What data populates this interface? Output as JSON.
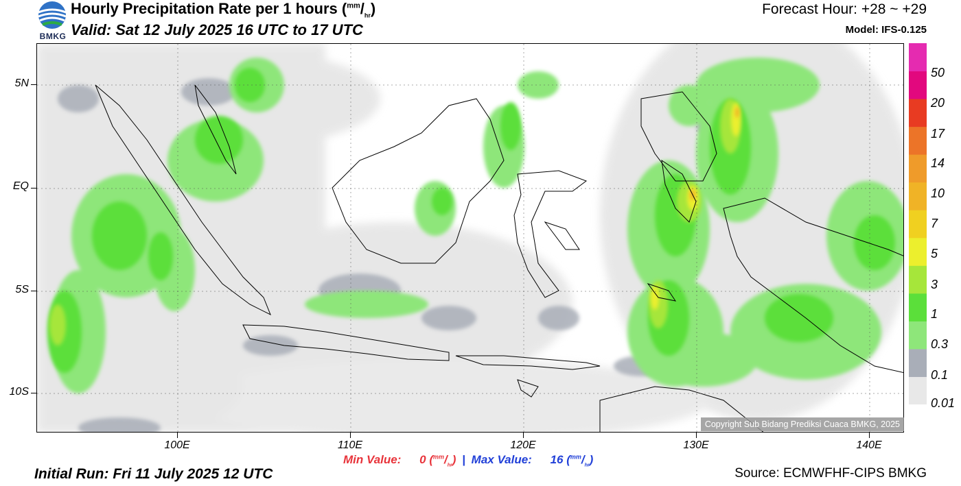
{
  "header": {
    "title_main": "Hourly Precipitation Rate per 1 hours (",
    "title_unit_top": "mm",
    "title_unit_sep": "/",
    "title_unit_bottom": "hr",
    "title_close": ")",
    "valid": "Valid: Sat 12 July 2025 16 UTC to 17 UTC",
    "forecast_hour": "Forecast Hour: +28 ~ +29",
    "model": "Model: IFS-0.125"
  },
  "logo": {
    "text": "BMKG"
  },
  "map": {
    "y_axis_labels": [
      "5N",
      "EQ",
      "5S",
      "10S"
    ],
    "x_axis_labels": [
      "100E",
      "110E",
      "120E",
      "130E",
      "140E"
    ],
    "copyright": "Copyright Sub Bidang Prediksi Cuaca BMKG, 2025"
  },
  "colorbar": {
    "levels": [
      "0.01",
      "0.1",
      "0.3",
      "1",
      "3",
      "5",
      "7",
      "10",
      "14",
      "17",
      "20",
      "50"
    ],
    "colors": [
      "#e8e8e8",
      "#a9aeb8",
      "#8ee67a",
      "#5bdf3a",
      "#a6e63a",
      "#ecef2d",
      "#f0d020",
      "#f0b326",
      "#ef9b2a",
      "#ec7428",
      "#e83b22",
      "#e2087e",
      "#e52bb0"
    ]
  },
  "minmax": {
    "min_label": "Min Value:",
    "min_value": "0",
    "max_label": "Max Value:",
    "max_value": "16",
    "unit_top": "mm",
    "unit_sep": "/",
    "unit_bottom": "hr",
    "separator": "|"
  },
  "footer": {
    "initial_run": "Initial Run: Fri 11 July 2025 12 UTC",
    "source": "Source: ECMWFHF-CIPS BMKG"
  }
}
